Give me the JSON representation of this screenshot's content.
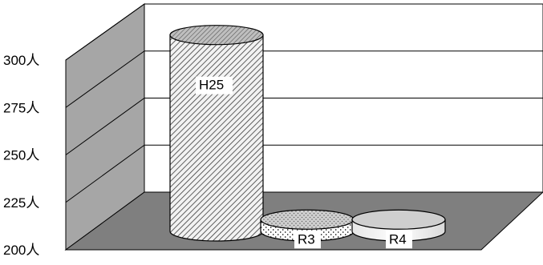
{
  "chart_data": {
    "type": "bar",
    "style": "3d-cylinder",
    "categories": [
      "H25",
      "R3",
      "R4"
    ],
    "values": [
      300,
      206,
      206
    ],
    "ylim": [
      200,
      300
    ],
    "yticks": [
      "200人",
      "225人",
      "250人",
      "275人",
      "300人"
    ],
    "grid": true,
    "legend": "none",
    "bar_label_position": "inside",
    "fills": [
      "diagonal-hatch",
      "dotted",
      "light-gray"
    ],
    "colors": {
      "walls": "#a6a6a6",
      "floor": "#7f7f7f",
      "back_wall": "#ffffff",
      "bar_base": "#d9d9d9"
    }
  }
}
